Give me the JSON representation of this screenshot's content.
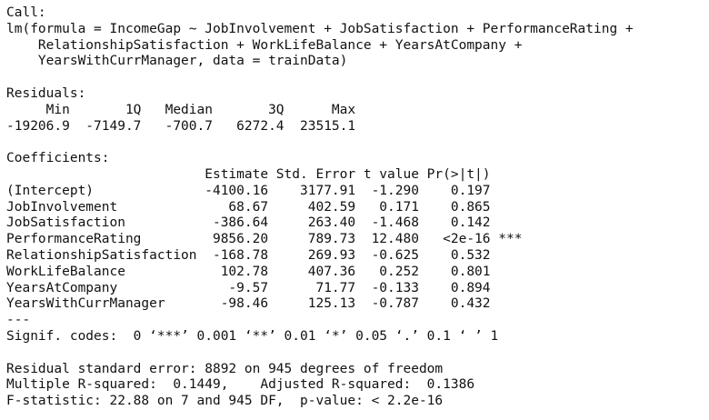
{
  "console": {
    "call_header": "Call:",
    "call_lines": [
      "lm(formula = IncomeGap ~ JobInvolvement + JobSatisfaction + PerformanceRating +",
      "    RelationshipSatisfaction + WorkLifeBalance + YearsAtCompany + ",
      "    YearsWithCurrManager, data = trainData)"
    ],
    "blank": "",
    "residuals": {
      "header": "Residuals:",
      "labels_line": "     Min       1Q   Median       3Q      Max ",
      "values_line": "-19206.9  -7149.7   -700.7   6272.4  23515.1 ",
      "labels": [
        "Min",
        "1Q",
        "Median",
        "3Q",
        "Max"
      ],
      "values": [
        "-19206.9",
        "-7149.7",
        "-700.7",
        "6272.4",
        "23515.1"
      ]
    },
    "coefficients": {
      "header": "Coefficients:",
      "column_line": "                         Estimate Std. Error t value Pr(>|t|)    ",
      "columns": [
        "Estimate",
        "Std. Error",
        "t value",
        "Pr(>|t|)"
      ],
      "row_lines": [
        "(Intercept)              -4100.16    3177.91  -1.290    0.197    ",
        "JobInvolvement              68.67     402.59   0.171    0.865    ",
        "JobSatisfaction           -386.64     263.40  -1.468    0.142    ",
        "PerformanceRating         9856.20     789.73  12.480   <2e-16 ***",
        "RelationshipSatisfaction  -168.78     269.93  -0.625    0.532    ",
        "WorkLifeBalance            102.78     407.36   0.252    0.801    ",
        "YearsAtCompany              -9.57      71.77  -0.133    0.894    ",
        "YearsWithCurrManager       -98.46     125.13  -0.787    0.432    "
      ],
      "rows": [
        {
          "term": "(Intercept)",
          "estimate": "-4100.16",
          "std_error": "3177.91",
          "t_value": "-1.290",
          "p_value": "0.197",
          "signif": ""
        },
        {
          "term": "JobInvolvement",
          "estimate": "68.67",
          "std_error": "402.59",
          "t_value": "0.171",
          "p_value": "0.865",
          "signif": ""
        },
        {
          "term": "JobSatisfaction",
          "estimate": "-386.64",
          "std_error": "263.40",
          "t_value": "-1.468",
          "p_value": "0.142",
          "signif": ""
        },
        {
          "term": "PerformanceRating",
          "estimate": "9856.20",
          "std_error": "789.73",
          "t_value": "12.480",
          "p_value": "<2e-16",
          "signif": "***"
        },
        {
          "term": "RelationshipSatisfaction",
          "estimate": "-168.78",
          "std_error": "269.93",
          "t_value": "-0.625",
          "p_value": "0.532",
          "signif": ""
        },
        {
          "term": "WorkLifeBalance",
          "estimate": "102.78",
          "std_error": "407.36",
          "t_value": "0.252",
          "p_value": "0.801",
          "signif": ""
        },
        {
          "term": "YearsAtCompany",
          "estimate": "-9.57",
          "std_error": "71.77",
          "t_value": "-0.133",
          "p_value": "0.894",
          "signif": ""
        },
        {
          "term": "YearsWithCurrManager",
          "estimate": "-98.46",
          "std_error": "125.13",
          "t_value": "-0.787",
          "p_value": "0.432",
          "signif": ""
        }
      ],
      "separator": "---",
      "signif_codes": "Signif. codes:  0 ‘***’ 0.001 ‘**’ 0.01 ‘*’ 0.05 ‘.’ 0.1 ‘ ’ 1"
    },
    "summary_lines": [
      "Residual standard error: 8892 on 945 degrees of freedom",
      "Multiple R-squared:  0.1449,\tAdjusted R-squared:  0.1386 ",
      "F-statistic: 22.88 on 7 and 945 DF,  p-value: < 2.2e-16"
    ]
  }
}
